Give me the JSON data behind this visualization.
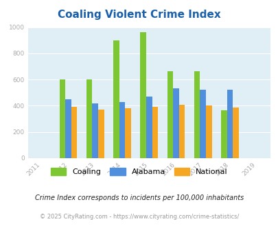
{
  "title": "Coaling Violent Crime Index",
  "all_years": [
    2011,
    2012,
    2013,
    2014,
    2015,
    2016,
    2017,
    2018,
    2019
  ],
  "data_years": [
    2012,
    2013,
    2014,
    2015,
    2016,
    2017,
    2018
  ],
  "coaling": [
    600,
    600,
    900,
    960,
    665,
    665,
    365
  ],
  "alabama": [
    450,
    420,
    430,
    470,
    535,
    525,
    525
  ],
  "national": [
    390,
    370,
    380,
    390,
    405,
    400,
    385
  ],
  "coaling_color": "#7dc832",
  "alabama_color": "#4f8fde",
  "national_color": "#f5a623",
  "bg_color": "#e0eef5",
  "ylim": [
    0,
    1000
  ],
  "yticks": [
    0,
    200,
    400,
    600,
    800,
    1000
  ],
  "bar_width": 0.22,
  "legend_labels": [
    "Coaling",
    "Alabama",
    "National"
  ],
  "subtitle": "Crime Index corresponds to incidents per 100,000 inhabitants",
  "footer": "© 2025 CityRating.com - https://www.cityrating.com/crime-statistics/",
  "title_color": "#1a5faa",
  "subtitle_color": "#222222",
  "footer_color": "#999999",
  "tick_color": "#aaaaaa"
}
